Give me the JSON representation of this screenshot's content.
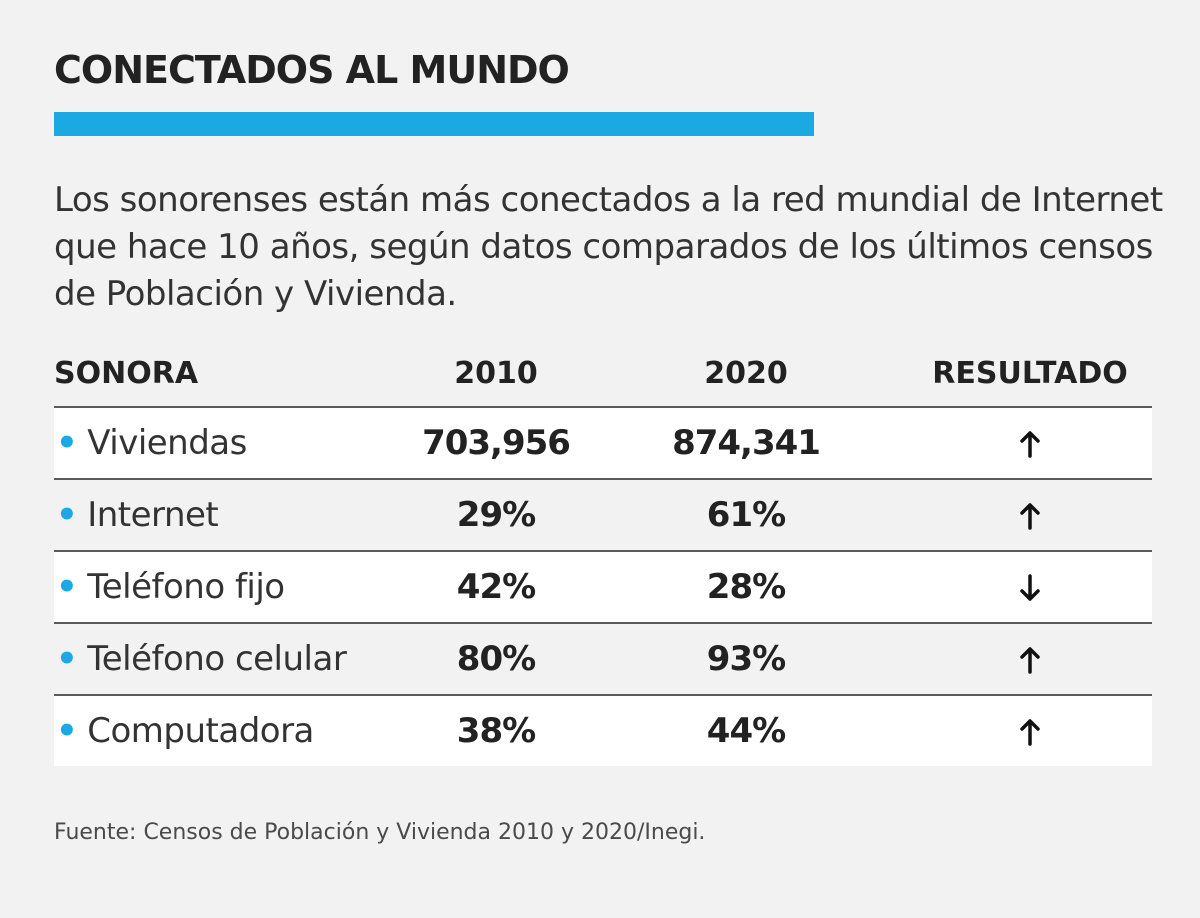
{
  "colors": {
    "accent": "#1aa9e3",
    "text": "#2b2b2b",
    "background": "#f2f2f2"
  },
  "header": {
    "title": "CONECTADOS AL MUNDO",
    "subtitle": "Los sonorenses están más conectados a la red mundial de Internet que hace 10 años, según datos comparados de los últimos censos de Población y Vivienda."
  },
  "chart_data": {
    "type": "table",
    "columns": [
      "SONORA",
      "2010",
      "2020",
      "RESULTADO"
    ],
    "rows": [
      {
        "label": "Viviendas",
        "v2010": "703,956",
        "v2020": "874,341",
        "result": "up"
      },
      {
        "label": "Internet",
        "v2010": "29%",
        "v2020": "61%",
        "result": "up"
      },
      {
        "label": "Teléfono fijo",
        "v2010": "42%",
        "v2020": "28%",
        "result": "down"
      },
      {
        "label": "Teléfono celular",
        "v2010": "80%",
        "v2020": "93%",
        "result": "up"
      },
      {
        "label": "Computadora",
        "v2010": "38%",
        "v2020": "44%",
        "result": "up"
      }
    ],
    "bullet": "•"
  },
  "footer": {
    "source": "Fuente: Censos de Población y Vivienda 2010 y 2020/Inegi."
  }
}
